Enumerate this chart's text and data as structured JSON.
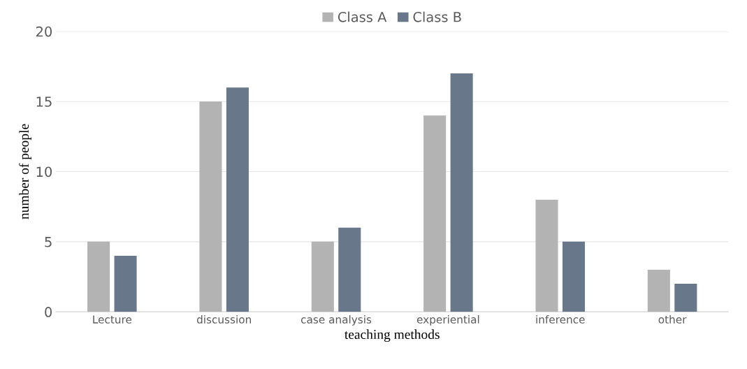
{
  "chart_data": {
    "type": "bar",
    "xlabel": "teaching methods",
    "ylabel": "number of people",
    "categories": [
      "Lecture",
      "discussion",
      "case analysis",
      "experiential",
      "inference",
      "other"
    ],
    "series": [
      {
        "name": "Class A",
        "color": "#b3b3b3",
        "values": [
          5,
          15,
          5,
          14,
          8,
          3
        ]
      },
      {
        "name": "Class B",
        "color": "#687789",
        "values": [
          4,
          16,
          6,
          17,
          5,
          2
        ]
      }
    ],
    "ylim": [
      0,
      20
    ],
    "yticks": [
      0,
      5,
      10,
      15,
      20
    ],
    "grid": "y",
    "legend": "top"
  }
}
